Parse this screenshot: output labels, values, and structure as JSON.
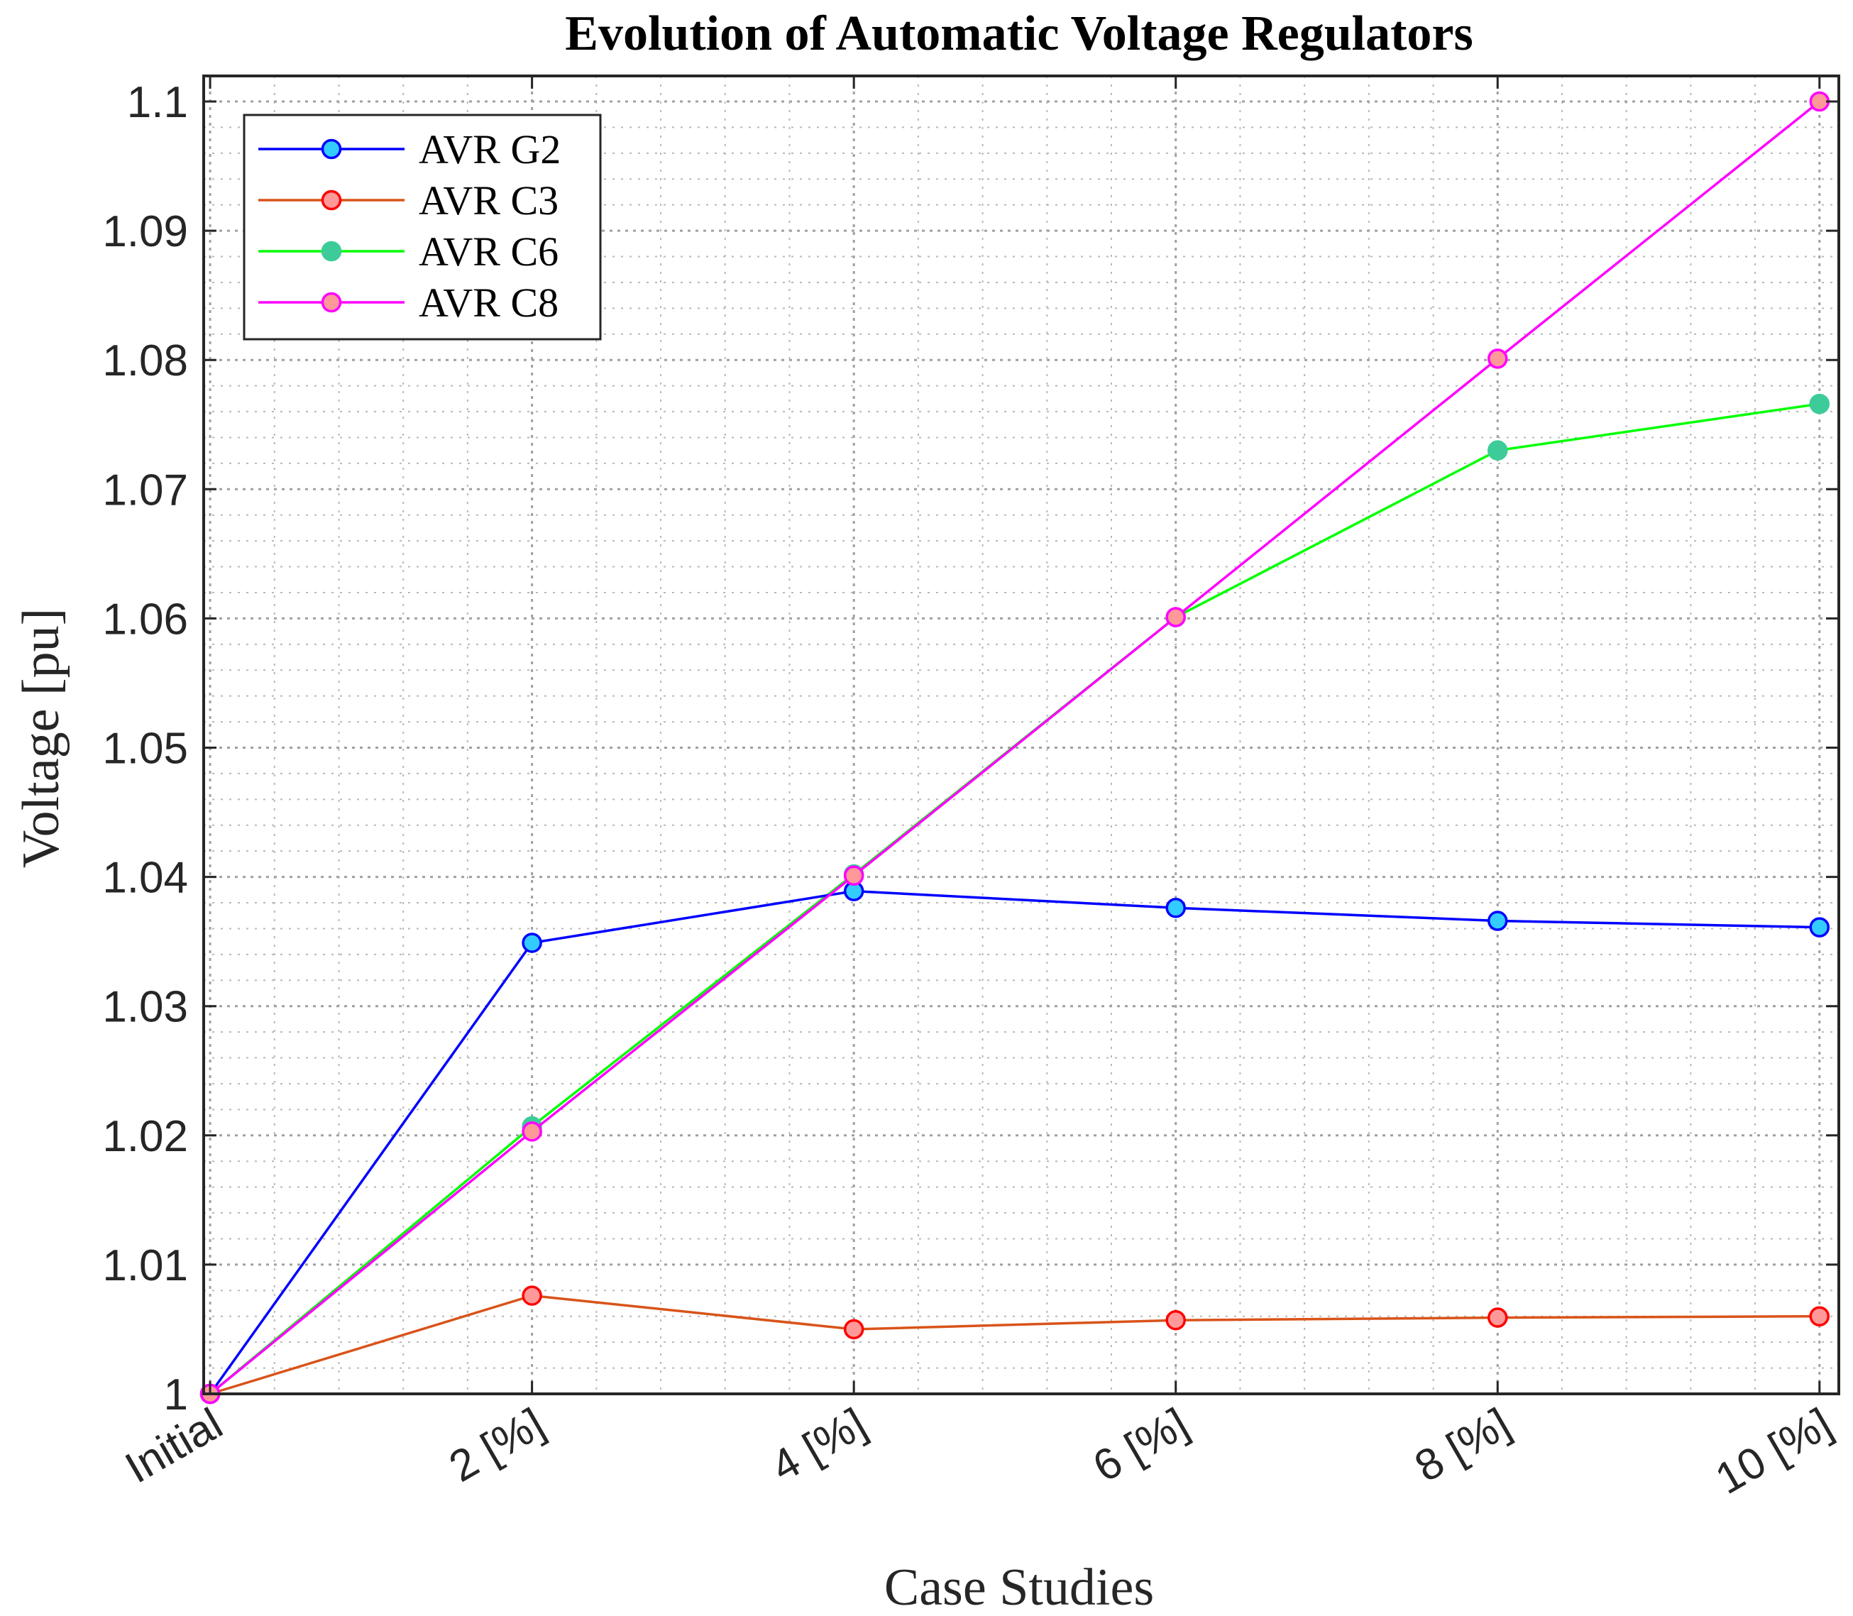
{
  "chart_data": {
    "type": "line",
    "title": "Evolution of Automatic Voltage Regulators",
    "xlabel": "Case Studies",
    "ylabel": "Voltage [pu]",
    "categories": [
      "Initial",
      "2 [%]",
      "4 [%]",
      "6 [%]",
      "8 [%]",
      "10 [%]"
    ],
    "ylim": [
      1.0,
      1.1
    ],
    "yticks": [
      1.0,
      1.01,
      1.02,
      1.03,
      1.04,
      1.05,
      1.06,
      1.07,
      1.08,
      1.09,
      1.1
    ],
    "ytick_labels": [
      "1",
      "1.01",
      "1.02",
      "1.03",
      "1.04",
      "1.05",
      "1.06",
      "1.07",
      "1.08",
      "1.09",
      "1.1"
    ],
    "grid": true,
    "minor_grid": true,
    "legend_position": "top-left",
    "series": [
      {
        "name": "AVR G2",
        "values": [
          1.0,
          1.0349,
          1.0389,
          1.0376,
          1.0366,
          1.0361
        ],
        "line_color": "#0000ff",
        "marker_fill": "#33ccff",
        "marker_edge": "#0000ff"
      },
      {
        "name": "AVR C3",
        "values": [
          1.0,
          1.0076,
          1.005,
          1.0057,
          1.0059,
          1.006
        ],
        "line_color": "#d95319",
        "marker_fill": "#ff9999",
        "marker_edge": "#ff0000"
      },
      {
        "name": "AVR C6",
        "values": [
          1.0,
          1.0207,
          1.0402,
          1.0601,
          1.073,
          1.0766
        ],
        "line_color": "#00ff00",
        "marker_fill": "#3dcc99",
        "marker_edge": "#3dcc99"
      },
      {
        "name": "AVR C8",
        "values": [
          1.0,
          1.0203,
          1.0401,
          1.0601,
          1.0801,
          1.1
        ],
        "line_color": "#ff00ff",
        "marker_fill": "#ff9999",
        "marker_edge": "#ff00ff"
      }
    ]
  }
}
